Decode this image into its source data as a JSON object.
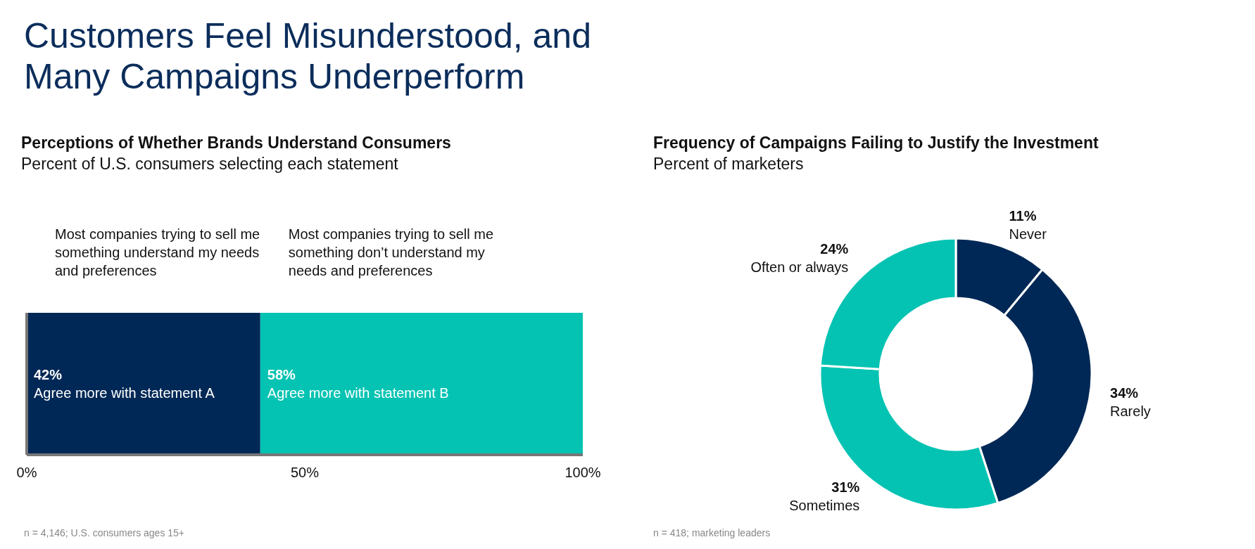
{
  "chart_data": [
    {
      "type": "other",
      "title": "Customers Feel Misunderstood, and Many Campaigns Underperform"
    },
    {
      "type": "bar",
      "orientation": "horizontal",
      "stacked": true,
      "title": "Perceptions of Whether Brands Understand Consumers",
      "subtitle": "Percent of U.S. consumers selecting each statement",
      "categories": [
        null
      ],
      "series": [
        {
          "name": "Agree more with statement A",
          "color": "#002856",
          "values": [
            42
          ],
          "value_labels": [
            "42%"
          ]
        },
        {
          "name": "Agree more with statement B",
          "color": "#05c3b2",
          "values": [
            58
          ],
          "value_labels": [
            "58%"
          ]
        }
      ],
      "xlim": [
        0,
        100
      ],
      "xticks": [
        {
          "value": 0,
          "label": "0%"
        },
        {
          "value": 50,
          "label": "50%"
        },
        {
          "value": 100,
          "label": "100%"
        }
      ],
      "grid": false,
      "legend": false,
      "annotations": [
        "Most companies trying to sell me something understand my needs and preferences",
        "Most companies trying to sell me something don’t understand my needs and preferences",
        "n = 4,146; U.S. consumers ages 15+"
      ]
    },
    {
      "type": "donut",
      "title": "Frequency of Campaigns Failing to Justify the Investment",
      "subtitle": "Percent of marketers",
      "categories": [
        "Never",
        "Rarely",
        "Sometimes",
        "Often or always"
      ],
      "values": [
        11,
        34,
        31,
        24
      ],
      "value_labels": [
        "11%",
        "34%",
        "31%",
        "24%"
      ],
      "colors": [
        "#002856",
        "#002856",
        "#05c3b2",
        "#05c3b2"
      ],
      "legend": false,
      "annotations": [
        "n = 418; marketing leaders"
      ]
    }
  ]
}
